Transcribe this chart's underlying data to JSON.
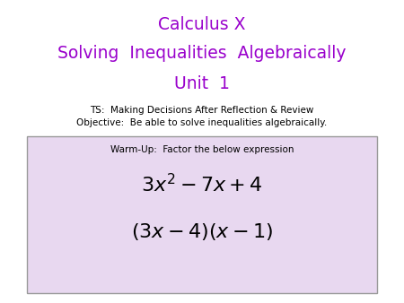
{
  "title_line1": "Calculus X",
  "title_line2": "Solving  Inequalities  Algebraically",
  "title_line3": "Unit  1",
  "title_color": "#9900CC",
  "subtitle_line1": "TS:  Making Decisions After Reflection & Review",
  "subtitle_line2": "Objective:  Be able to solve inequalities algebraically.",
  "subtitle_color": "#000000",
  "box_facecolor": "#E8D8F0",
  "box_edgecolor": "#999999",
  "warmup_label": "Warm-Up:  Factor the below expression",
  "expr1": "$3x^2 - 7x + 4$",
  "expr2": "$(3x - 4)(x - 1)$",
  "background_color": "#FFFFFF",
  "title_fontsize": 13.5,
  "subtitle_fontsize": 7.5,
  "warmup_fontsize": 7.5,
  "math_fontsize1": 16,
  "math_fontsize2": 16
}
